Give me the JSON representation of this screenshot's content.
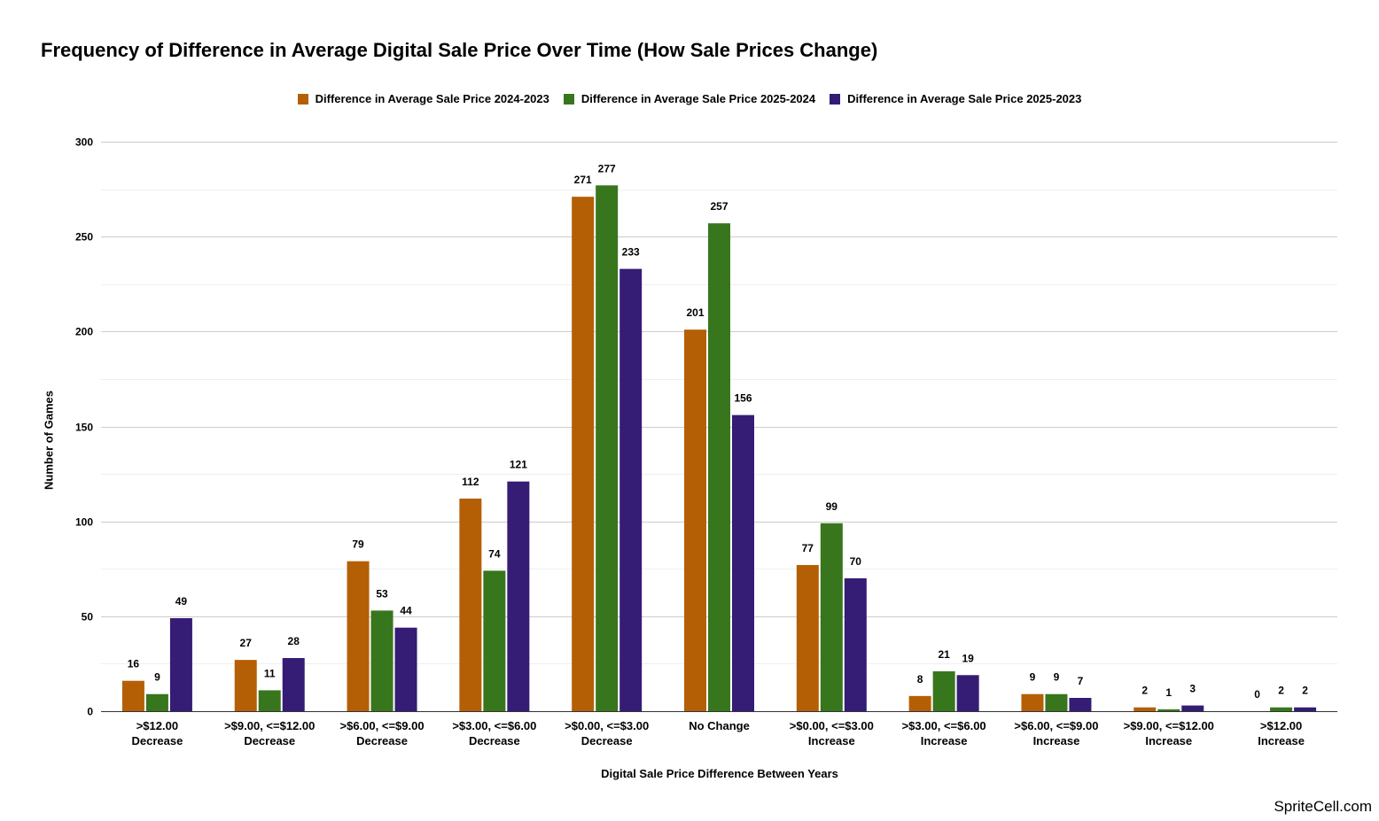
{
  "chart_data": {
    "type": "bar",
    "title": "Frequency of Difference in Average Digital Sale Price Over Time (How Sale Prices Change)",
    "xlabel": "Digital Sale Price Difference Between Years",
    "ylabel": "Number of Games",
    "ylim": [
      0,
      300
    ],
    "yticks": [
      0,
      50,
      100,
      150,
      200,
      250,
      300
    ],
    "grid": true,
    "legend_position": "top-center",
    "categories": [
      [
        ">$12.00",
        "Decrease"
      ],
      [
        ">$9.00, <=$12.00",
        "Decrease"
      ],
      [
        ">$6.00, <=$9.00",
        "Decrease"
      ],
      [
        ">$3.00, <=$6.00",
        "Decrease"
      ],
      [
        ">$0.00, <=$3.00",
        "Decrease"
      ],
      [
        "No Change"
      ],
      [
        ">$0.00, <=$3.00",
        "Increase"
      ],
      [
        ">$3.00, <=$6.00",
        "Increase"
      ],
      [
        ">$6.00, <=$9.00",
        "Increase"
      ],
      [
        ">$9.00, <=$12.00",
        "Increase"
      ],
      [
        ">$12.00",
        "Increase"
      ]
    ],
    "series": [
      {
        "name": "Difference in Average Sale Price 2024-2023",
        "color": "#b45f06",
        "values": [
          16,
          27,
          79,
          112,
          271,
          201,
          77,
          8,
          9,
          2,
          0
        ]
      },
      {
        "name": "Difference in Average Sale Price 2025-2024",
        "color": "#38761d",
        "values": [
          9,
          11,
          53,
          74,
          277,
          257,
          99,
          21,
          9,
          1,
          2
        ]
      },
      {
        "name": "Difference in Average Sale Price 2025-2023",
        "color": "#351c75",
        "values": [
          49,
          28,
          44,
          121,
          233,
          156,
          70,
          19,
          7,
          3,
          2
        ]
      }
    ]
  },
  "watermark": "SpriteCell.com"
}
